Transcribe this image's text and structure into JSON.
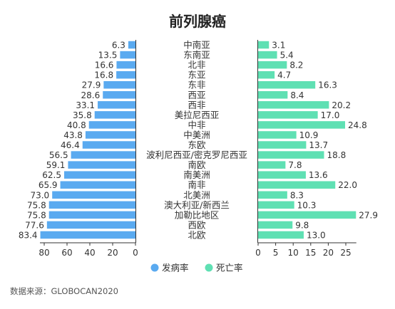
{
  "chart_data": {
    "type": "bar",
    "title": "前列腺癌",
    "categories": [
      "中南亚",
      "东南亚",
      "北非",
      "东亚",
      "东非",
      "西亚",
      "西非",
      "美拉尼西亚",
      "中非",
      "中美洲",
      "东欧",
      "波利尼西亚/密克罗尼西亚",
      "南欧",
      "南美洲",
      "南非",
      "北美洲",
      "澳大利亚/新西兰",
      "加勒比地区",
      "西欧",
      "北欧"
    ],
    "series": [
      {
        "name": "发病率",
        "color": "#5aaaf0",
        "xlim": [
          0,
          85
        ],
        "ticks": [
          80,
          60,
          40,
          20,
          0
        ],
        "values": [
          6.3,
          13.5,
          16.6,
          16.8,
          27.9,
          28.6,
          33.1,
          35.8,
          40.8,
          43.8,
          46.4,
          56.5,
          59.1,
          62.5,
          65.9,
          73.0,
          75.8,
          75.8,
          77.6,
          83.4
        ]
      },
      {
        "name": "死亡率",
        "color": "#5fe0b3",
        "xlim": [
          0,
          28
        ],
        "ticks": [
          0,
          5,
          10,
          15,
          20,
          25
        ],
        "values": [
          3.1,
          5.4,
          8.2,
          4.7,
          16.3,
          8.4,
          20.2,
          17.0,
          24.8,
          10.9,
          13.7,
          18.8,
          7.8,
          13.6,
          22.0,
          8.3,
          10.3,
          27.9,
          9.8,
          13.0
        ]
      }
    ],
    "legend": "bottom-center",
    "grid": false
  },
  "source": "数据来源：GLOBOCAN2020"
}
